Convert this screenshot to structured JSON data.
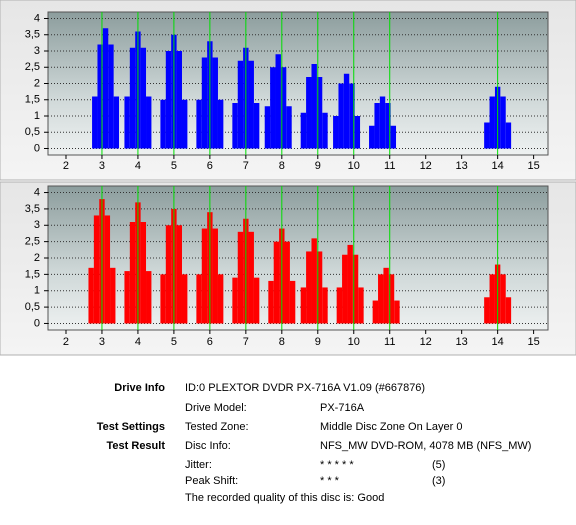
{
  "chart_data": [
    {
      "type": "bar",
      "x": [
        2.8,
        2.95,
        3.1,
        3.25,
        3.4,
        3.7,
        3.85,
        4.0,
        4.15,
        4.3,
        4.7,
        4.85,
        5.0,
        5.15,
        5.3,
        5.7,
        5.85,
        6.0,
        6.15,
        6.3,
        6.7,
        6.85,
        7.0,
        7.15,
        7.3,
        7.6,
        7.75,
        7.9,
        8.05,
        8.2,
        8.6,
        8.75,
        8.9,
        9.05,
        9.2,
        9.5,
        9.65,
        9.8,
        9.95,
        10.1,
        10.5,
        10.65,
        10.8,
        10.95,
        11.1,
        13.7,
        13.85,
        14.0,
        14.15,
        14.3
      ],
      "series": [
        {
          "color": "#0000ff",
          "values": [
            1.6,
            3.2,
            3.7,
            3.2,
            1.6,
            1.6,
            3.1,
            3.6,
            3.1,
            1.6,
            1.5,
            3.0,
            3.5,
            3.0,
            1.5,
            1.5,
            2.8,
            3.3,
            2.8,
            1.5,
            1.4,
            2.7,
            3.1,
            2.7,
            1.4,
            1.3,
            2.5,
            2.9,
            2.5,
            1.3,
            1.1,
            2.2,
            2.6,
            2.2,
            1.1,
            1.0,
            2.0,
            2.3,
            2.0,
            1.0,
            0.7,
            1.4,
            1.6,
            1.4,
            0.7,
            0.8,
            1.6,
            1.9,
            1.6,
            0.8
          ]
        }
      ],
      "xlim": [
        1.5,
        15.4
      ],
      "xticks": [
        2,
        3,
        4,
        5,
        6,
        7,
        8,
        9,
        10,
        11,
        12,
        13,
        14,
        15
      ],
      "ylim": [
        -0.2,
        4.2
      ],
      "yticks": [
        0,
        {
          "value": 0.5,
          "label": "0,5"
        },
        1,
        {
          "value": 1.5,
          "label": "1,5"
        },
        2,
        {
          "value": 2.5,
          "label": "2,5"
        },
        3,
        {
          "value": 3.5,
          "label": "3,5"
        },
        4
      ],
      "grid": true,
      "markers": [
        3,
        4,
        5,
        6,
        7,
        8,
        9,
        10,
        11,
        14
      ],
      "marker_color": "#00dd00"
    },
    {
      "type": "bar",
      "x": [
        2.7,
        2.85,
        3.0,
        3.15,
        3.3,
        3.7,
        3.85,
        4.0,
        4.15,
        4.3,
        4.7,
        4.85,
        5.0,
        5.15,
        5.3,
        5.7,
        5.85,
        6.0,
        6.15,
        6.3,
        6.7,
        6.85,
        7.0,
        7.15,
        7.3,
        7.7,
        7.85,
        8.0,
        8.15,
        8.3,
        8.6,
        8.75,
        8.9,
        9.05,
        9.2,
        9.6,
        9.75,
        9.9,
        10.05,
        10.2,
        10.6,
        10.75,
        10.9,
        11.05,
        11.2,
        13.7,
        13.85,
        14.0,
        14.15,
        14.3
      ],
      "series": [
        {
          "color": "#ff0000",
          "values": [
            1.7,
            3.3,
            3.8,
            3.3,
            1.7,
            1.6,
            3.1,
            3.7,
            3.1,
            1.6,
            1.5,
            3.0,
            3.5,
            3.0,
            1.5,
            1.5,
            2.9,
            3.4,
            2.9,
            1.5,
            1.4,
            2.8,
            3.2,
            2.8,
            1.4,
            1.3,
            2.5,
            2.9,
            2.5,
            1.3,
            1.1,
            2.2,
            2.6,
            2.2,
            1.1,
            1.1,
            2.1,
            2.4,
            2.1,
            1.1,
            0.7,
            1.5,
            1.7,
            1.5,
            0.7,
            0.8,
            1.5,
            1.8,
            1.5,
            0.8
          ]
        }
      ],
      "xlim": [
        1.5,
        15.4
      ],
      "xticks": [
        2,
        3,
        4,
        5,
        6,
        7,
        8,
        9,
        10,
        11,
        12,
        13,
        14,
        15
      ],
      "ylim": [
        -0.2,
        4.2
      ],
      "yticks": [
        0,
        {
          "value": 0.5,
          "label": "0,5"
        },
        1,
        {
          "value": 1.5,
          "label": "1,5"
        },
        2,
        {
          "value": 2.5,
          "label": "2,5"
        },
        3,
        {
          "value": 3.5,
          "label": "3,5"
        },
        4
      ],
      "grid": true,
      "markers": [
        3,
        4,
        5,
        6,
        7,
        8,
        9,
        10,
        11,
        14
      ],
      "marker_color": "#00dd00"
    }
  ],
  "info": {
    "rows": [
      {
        "section": "Drive Info",
        "label": "ID:0 PLEXTOR DVDR PX-716A V1.09 (#667876)"
      },
      {
        "label": "Drive Model:",
        "value": "PX-716A"
      },
      {
        "section": "Test Settings",
        "label": "Tested Zone:",
        "value": "Middle Disc Zone On Layer 0"
      },
      {
        "section": "Test Result",
        "label": "Disc Info:",
        "value": "NFS_MW DVD-ROM, 4078 MB (NFS_MW)"
      },
      {
        "label": "Jitter:",
        "value": "* * * * *",
        "score": "(5)"
      },
      {
        "label": "Peak Shift:",
        "value": "* * *",
        "score": "(3)"
      },
      {
        "label": "The recorded quality of this disc is: Good"
      }
    ]
  }
}
